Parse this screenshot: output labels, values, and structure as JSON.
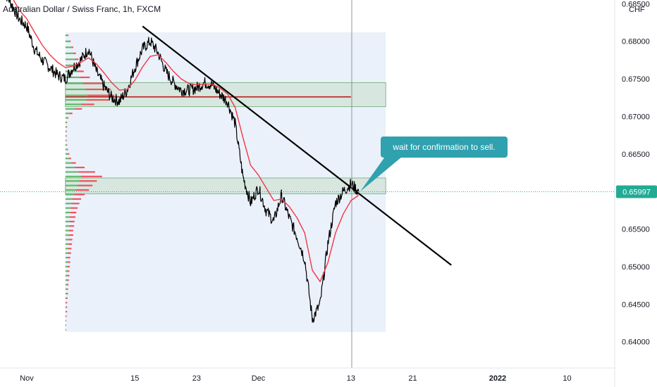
{
  "chart_data": {
    "type": "candlestick",
    "title": "Australian Dollar / Swiss Franc, 1h, FXCM",
    "currency_label": "CHF",
    "y_ticks": [
      "0.68500",
      "0.68000",
      "0.67500",
      "0.67000",
      "0.66500",
      "0.66000",
      "0.65500",
      "0.65000",
      "0.64500",
      "0.64000"
    ],
    "y_tick_values": [
      0.685,
      0.68,
      0.675,
      0.67,
      0.665,
      0.66,
      0.655,
      0.65,
      0.645,
      0.64
    ],
    "ylim": [
      0.6365,
      0.6855
    ],
    "x_ticks": [
      {
        "label": "Nov",
        "day": 0,
        "bold": false
      },
      {
        "label": "15",
        "day": 14,
        "bold": false
      },
      {
        "label": "23",
        "day": 22,
        "bold": false
      },
      {
        "label": "Dec",
        "day": 30,
        "bold": false
      },
      {
        "label": "13",
        "day": 42,
        "bold": false
      },
      {
        "label": "21",
        "day": 50,
        "bold": false
      },
      {
        "label": "2022",
        "day": 61,
        "bold": true
      },
      {
        "label": "10",
        "day": 70,
        "bold": false
      }
    ],
    "last_price": "0.65997",
    "last_price_value": 0.65997,
    "series": [
      {
        "kind": "price",
        "points": [
          [
            -3,
            0.6868
          ],
          [
            -2,
            0.685
          ],
          [
            -1,
            0.683
          ],
          [
            0,
            0.682
          ],
          [
            1,
            0.679
          ],
          [
            2,
            0.6775
          ],
          [
            3,
            0.6765
          ],
          [
            4,
            0.6755
          ],
          [
            5,
            0.675
          ],
          [
            6,
            0.6765
          ],
          [
            7,
            0.6775
          ],
          [
            8,
            0.679
          ],
          [
            9,
            0.676
          ],
          [
            10,
            0.674
          ],
          [
            11,
            0.6725
          ],
          [
            12,
            0.672
          ],
          [
            13,
            0.6735
          ],
          [
            14,
            0.6765
          ],
          [
            15,
            0.679
          ],
          [
            16,
            0.68
          ],
          [
            17,
            0.6785
          ],
          [
            18,
            0.676
          ],
          [
            19,
            0.6745
          ],
          [
            20,
            0.6735
          ],
          [
            21,
            0.6735
          ],
          [
            22,
            0.6738
          ],
          [
            23,
            0.6745
          ],
          [
            24,
            0.6742
          ],
          [
            25,
            0.673
          ],
          [
            26,
            0.672
          ],
          [
            27,
            0.669
          ],
          [
            28,
            0.662
          ],
          [
            29,
            0.6585
          ],
          [
            30,
            0.6605
          ],
          [
            31,
            0.6575
          ],
          [
            32,
            0.656
          ],
          [
            33,
            0.6595
          ],
          [
            34,
            0.6565
          ],
          [
            35,
            0.654
          ],
          [
            36,
            0.651
          ],
          [
            37,
            0.643
          ],
          [
            38,
            0.645
          ],
          [
            39,
            0.653
          ],
          [
            40,
            0.6585
          ],
          [
            41,
            0.66
          ],
          [
            42,
            0.661
          ],
          [
            43,
            0.66
          ]
        ]
      },
      {
        "kind": "moving-average",
        "color": "#f23645",
        "points": [
          [
            -3,
            0.6872
          ],
          [
            -2,
            0.686
          ],
          [
            -1,
            0.6842
          ],
          [
            0,
            0.683
          ],
          [
            1,
            0.6812
          ],
          [
            2,
            0.6795
          ],
          [
            3,
            0.6782
          ],
          [
            4,
            0.6772
          ],
          [
            5,
            0.6765
          ],
          [
            6,
            0.6767
          ],
          [
            7,
            0.6772
          ],
          [
            8,
            0.6778
          ],
          [
            9,
            0.677
          ],
          [
            10,
            0.6758
          ],
          [
            11,
            0.6745
          ],
          [
            12,
            0.6735
          ],
          [
            13,
            0.6736
          ],
          [
            14,
            0.6748
          ],
          [
            15,
            0.6766
          ],
          [
            16,
            0.678
          ],
          [
            17,
            0.6782
          ],
          [
            18,
            0.6772
          ],
          [
            19,
            0.676
          ],
          [
            20,
            0.675
          ],
          [
            21,
            0.6744
          ],
          [
            22,
            0.6742
          ],
          [
            23,
            0.6743
          ],
          [
            24,
            0.6743
          ],
          [
            25,
            0.6738
          ],
          [
            26,
            0.673
          ],
          [
            27,
            0.6712
          ],
          [
            28,
            0.6672
          ],
          [
            29,
            0.6635
          ],
          [
            30,
            0.6622
          ],
          [
            31,
            0.6605
          ],
          [
            32,
            0.6588
          ],
          [
            33,
            0.659
          ],
          [
            34,
            0.658
          ],
          [
            35,
            0.6565
          ],
          [
            36,
            0.6545
          ],
          [
            37,
            0.6495
          ],
          [
            38,
            0.648
          ],
          [
            39,
            0.6505
          ],
          [
            40,
            0.6545
          ],
          [
            41,
            0.657
          ],
          [
            42,
            0.6588
          ],
          [
            43,
            0.6595
          ]
        ]
      }
    ],
    "volume_profile": {
      "top_value": 0.6812,
      "bottom_value": 0.6413,
      "rows": [
        [
          0.6808,
          5,
          2
        ],
        [
          0.68,
          9,
          3
        ],
        [
          0.6792,
          14,
          4
        ],
        [
          0.6784,
          18,
          6
        ],
        [
          0.6776,
          22,
          8
        ],
        [
          0.6768,
          25,
          10
        ],
        [
          0.676,
          28,
          14
        ],
        [
          0.6752,
          34,
          22
        ],
        [
          0.6744,
          40,
          45
        ],
        [
          0.6736,
          46,
          58
        ],
        [
          0.6728,
          52,
          60
        ],
        [
          0.6722,
          48,
          54
        ],
        [
          0.6716,
          36,
          30
        ],
        [
          0.671,
          22,
          16
        ],
        [
          0.6704,
          10,
          6
        ],
        [
          0.6698,
          5,
          2
        ],
        [
          0.6692,
          3,
          1
        ],
        [
          0.6686,
          3,
          1
        ],
        [
          0.668,
          2,
          1
        ],
        [
          0.6674,
          2,
          1
        ],
        [
          0.6668,
          2,
          1
        ],
        [
          0.6662,
          3,
          1
        ],
        [
          0.6656,
          4,
          2
        ],
        [
          0.665,
          6,
          3
        ],
        [
          0.6644,
          8,
          5
        ],
        [
          0.6638,
          14,
          10
        ],
        [
          0.6632,
          22,
          22
        ],
        [
          0.6626,
          30,
          38
        ],
        [
          0.662,
          36,
          48
        ],
        [
          0.6614,
          32,
          40
        ],
        [
          0.6608,
          28,
          34
        ],
        [
          0.6602,
          24,
          30
        ],
        [
          0.6596,
          20,
          24
        ],
        [
          0.659,
          16,
          20
        ],
        [
          0.6584,
          14,
          18
        ],
        [
          0.6578,
          12,
          16
        ],
        [
          0.6572,
          11,
          14
        ],
        [
          0.6566,
          10,
          13
        ],
        [
          0.656,
          9,
          12
        ],
        [
          0.6554,
          9,
          11
        ],
        [
          0.6548,
          8,
          10
        ],
        [
          0.6542,
          8,
          10
        ],
        [
          0.6536,
          7,
          9
        ],
        [
          0.653,
          7,
          8
        ],
        [
          0.6524,
          6,
          8
        ],
        [
          0.6518,
          6,
          7
        ],
        [
          0.6512,
          5,
          6
        ],
        [
          0.6506,
          5,
          6
        ],
        [
          0.65,
          5,
          5
        ],
        [
          0.6494,
          4,
          5
        ],
        [
          0.6488,
          4,
          5
        ],
        [
          0.6482,
          4,
          4
        ],
        [
          0.6476,
          3,
          4
        ],
        [
          0.647,
          3,
          3
        ],
        [
          0.6464,
          3,
          3
        ],
        [
          0.6458,
          2,
          3
        ],
        [
          0.6452,
          2,
          2
        ],
        [
          0.6446,
          2,
          2
        ],
        [
          0.644,
          2,
          2
        ],
        [
          0.6434,
          1,
          2
        ],
        [
          0.6428,
          1,
          1
        ],
        [
          0.6422,
          1,
          1
        ],
        [
          0.6416,
          1,
          1
        ]
      ],
      "poc_value": 0.6725
    },
    "zones": [
      {
        "day_start": 5,
        "day_end": 46.5,
        "top": 0.6745,
        "bottom": 0.6713
      },
      {
        "day_start": 5,
        "day_end": 46.5,
        "top": 0.6618,
        "bottom": 0.6597
      }
    ],
    "trendline": {
      "from": [
        15,
        0.682
      ],
      "to": [
        55,
        0.6502
      ]
    },
    "horizontal_ray": {
      "value": 0.6726,
      "day_start": 5,
      "day_end": 42,
      "color": "#b71c1c"
    },
    "crosshair_day": 42.1,
    "annotation": {
      "text": "wait for confirmation to sell.",
      "pointer_to": [
        43.2,
        0.66
      ],
      "color": "#30a1ae"
    },
    "colors": {
      "price": "#000000",
      "volume_up": "#4caf50",
      "volume_down": "#f23645",
      "last_price_bg": "#22ab94",
      "profile_bg": "#dbe6f5",
      "zone_fill": "#c6dfca",
      "zone_stroke": "#7fb88a"
    }
  }
}
